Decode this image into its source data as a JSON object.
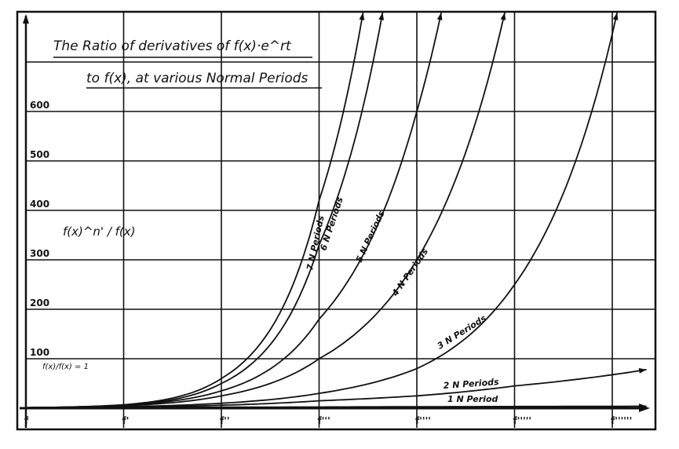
{
  "chart_data": {
    "type": "line",
    "title": [
      "The Ratio of derivatives of f(x)·e^rt",
      "to f(x), at various Normal Periods"
    ],
    "ylabel": "f(x)^n' / f(x)",
    "xlabel": "",
    "annotation": "f(x)/f(x) = 1",
    "x_tick_labels": [
      "f",
      "f'",
      "f''",
      "f'''",
      "f''''",
      "f'''''",
      "f''''''"
    ],
    "y_tick_values": [
      100,
      200,
      300,
      400,
      500,
      600
    ],
    "y_tick_labels": [
      "100",
      "200",
      "300",
      "400",
      "500",
      "600"
    ],
    "ylim": [
      0,
      800
    ],
    "xlim": [
      0,
      6.4
    ],
    "grid": true,
    "series": [
      {
        "name": "7 N Periods",
        "x": [
          0,
          1,
          2,
          3,
          3.45
        ],
        "values": [
          1,
          7,
          60,
          420,
          800
        ]
      },
      {
        "name": "6 N Periods",
        "x": [
          0,
          1,
          2,
          3,
          3.65
        ],
        "values": [
          1,
          6,
          50,
          330,
          800
        ]
      },
      {
        "name": "5 N Periods",
        "x": [
          0,
          1,
          2,
          3,
          4,
          4.25
        ],
        "values": [
          1,
          6,
          35,
          180,
          600,
          800
        ]
      },
      {
        "name": "4 N Periods",
        "x": [
          0,
          1,
          2,
          3,
          4,
          4.9
        ],
        "values": [
          1,
          5,
          25,
          100,
          300,
          800
        ]
      },
      {
        "name": "3 N Periods",
        "x": [
          0,
          1,
          2,
          3,
          4,
          5,
          6.05
        ],
        "values": [
          1,
          3,
          10,
          30,
          80,
          250,
          800
        ]
      },
      {
        "name": "2 N Periods",
        "x": [
          0,
          1,
          2,
          3,
          4,
          5,
          6.35
        ],
        "values": [
          1,
          2,
          6,
          15,
          25,
          45,
          78
        ]
      },
      {
        "name": "1 N Period",
        "x": [
          0,
          2,
          4,
          6.35
        ],
        "values": [
          1,
          2,
          3,
          4
        ]
      }
    ]
  }
}
